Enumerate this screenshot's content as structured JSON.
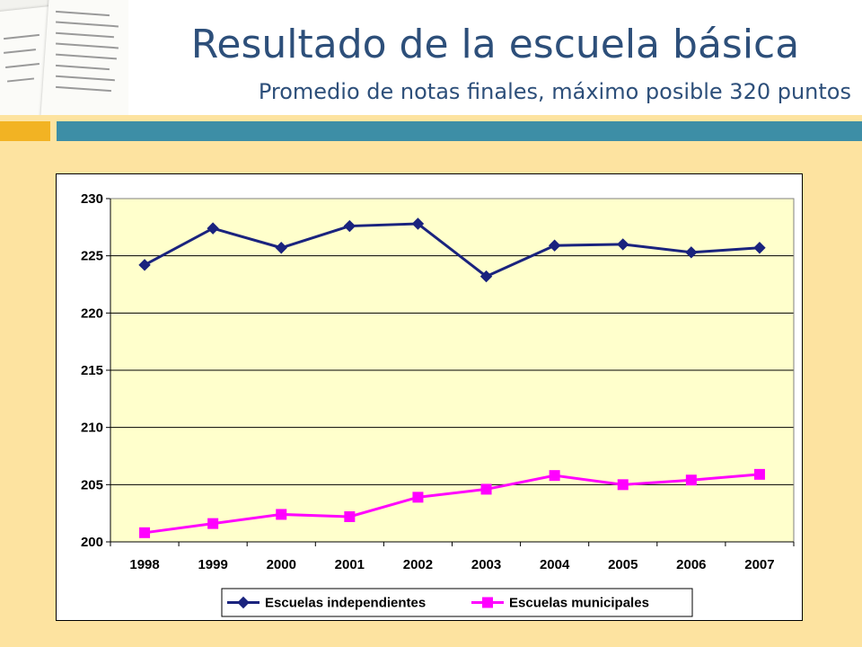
{
  "slide": {
    "title": "Resultado de la escuela básica",
    "subtitle": "Promedio de notas finales, máximo posible 320 puntos"
  },
  "colors": {
    "background": "#fde3a0",
    "title": "#2d4f7a",
    "accent_orange": "#f2b323",
    "accent_teal": "#3d8ea6",
    "plot_area": "#ffffcc"
  },
  "chart_data": {
    "type": "line",
    "title": "",
    "xlabel": "",
    "ylabel": "",
    "x": [
      "1998",
      "1999",
      "2000",
      "2001",
      "2002",
      "2003",
      "2004",
      "2005",
      "2006",
      "2007"
    ],
    "ylim": [
      200,
      230
    ],
    "yticks": [
      200,
      205,
      210,
      215,
      220,
      225,
      230
    ],
    "grid": "horizontal",
    "legend": "bottom",
    "series": [
      {
        "name": "Escuelas independientes",
        "color": "#1a237e",
        "marker": "diamond",
        "values": [
          224.2,
          227.4,
          225.7,
          227.6,
          227.8,
          223.2,
          225.9,
          226.0,
          225.3,
          225.7
        ]
      },
      {
        "name": "Escuelas municipales",
        "color": "#ff00ff",
        "marker": "square",
        "values": [
          200.8,
          201.6,
          202.4,
          202.2,
          203.9,
          204.6,
          205.8,
          205.0,
          205.4,
          205.9
        ]
      }
    ]
  }
}
